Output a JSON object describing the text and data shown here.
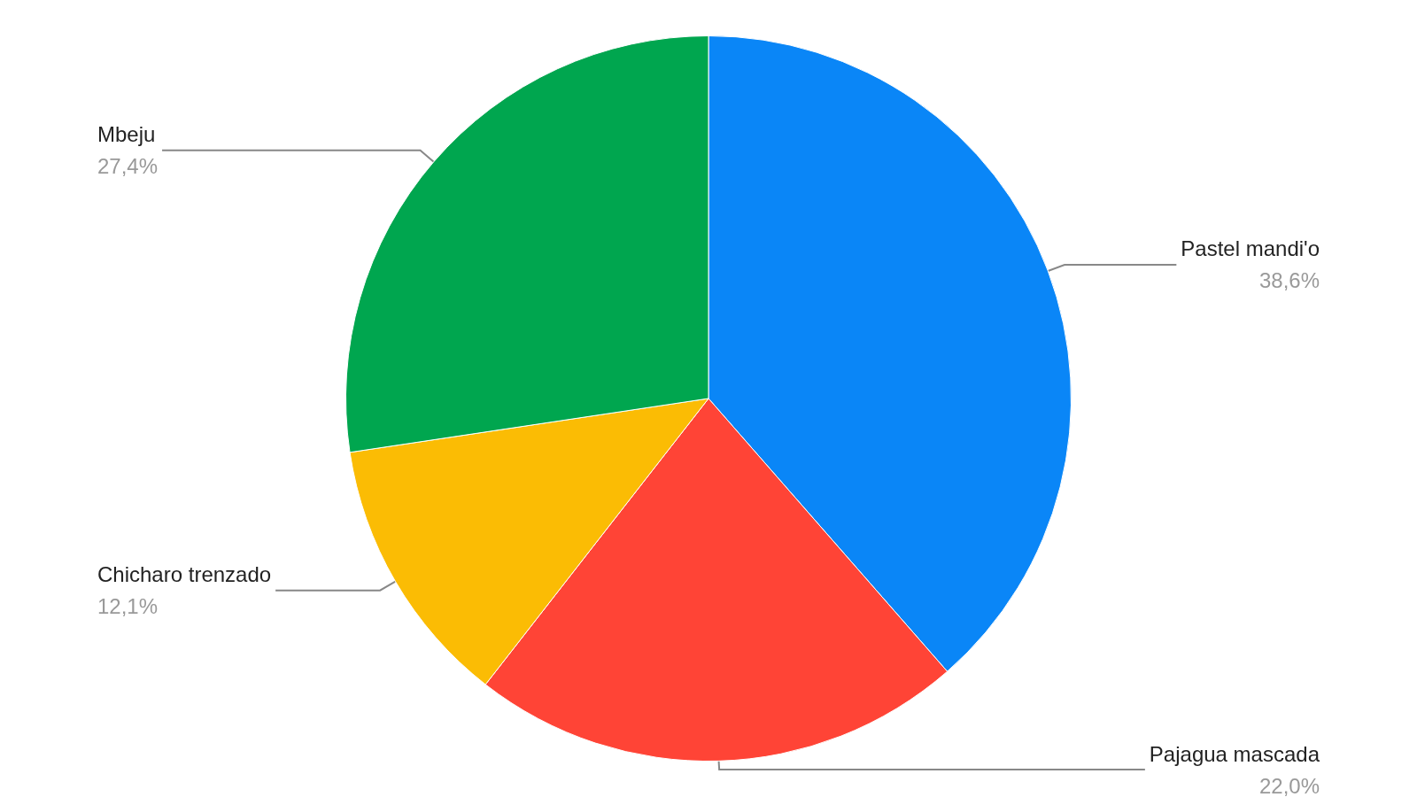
{
  "chart_data": {
    "type": "pie",
    "categories": [
      "Pastel mandi'o",
      "Pajagua mascada",
      "Chicharo trenzado",
      "Mbeju"
    ],
    "values": [
      38.6,
      22.0,
      12.1,
      27.4
    ],
    "value_labels": [
      "38,6%",
      "22,0%",
      "12,1%",
      "27,4%"
    ],
    "colors": [
      "#0a86f7",
      "#ff4436",
      "#fbbc04",
      "#00a64f"
    ],
    "legend": false
  }
}
